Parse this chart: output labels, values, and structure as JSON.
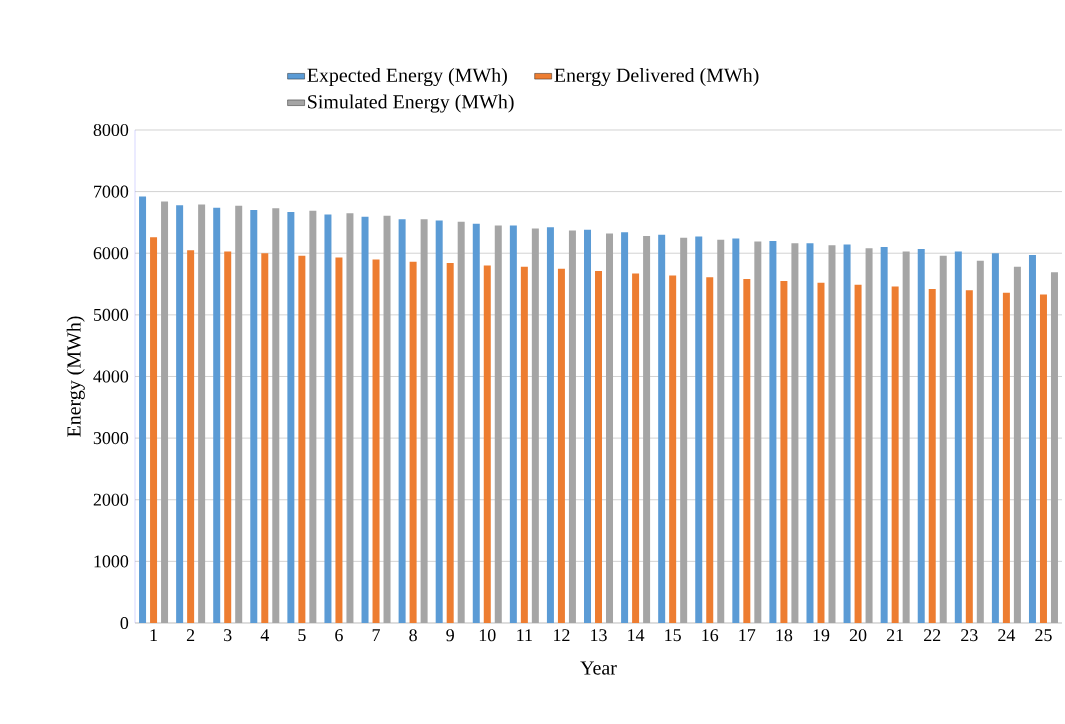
{
  "chart_data": {
    "type": "bar",
    "xlabel": "Year",
    "ylabel": "Energy (MWh)",
    "categories": [
      "1",
      "2",
      "3",
      "4",
      "5",
      "6",
      "7",
      "8",
      "9",
      "10",
      "11",
      "12",
      "13",
      "14",
      "15",
      "16",
      "17",
      "18",
      "19",
      "20",
      "21",
      "22",
      "23",
      "24",
      "25"
    ],
    "series": [
      {
        "name": "Expected Energy (MWh)",
        "color": "#5b9bd5",
        "values": [
          6920,
          6780,
          6740,
          6700,
          6670,
          6630,
          6590,
          6550,
          6530,
          6480,
          6450,
          6420,
          6380,
          6340,
          6300,
          6270,
          6240,
          6200,
          6160,
          6140,
          6100,
          6070,
          6030,
          6000,
          5970
        ]
      },
      {
        "name": "Energy Delivered (MWh)",
        "color": "#ed7d31",
        "values": [
          6260,
          6050,
          6030,
          6000,
          5960,
          5930,
          5900,
          5860,
          5840,
          5800,
          5780,
          5750,
          5710,
          5670,
          5640,
          5610,
          5580,
          5550,
          5520,
          5490,
          5460,
          5420,
          5400,
          5360,
          5330
        ]
      },
      {
        "name": "Simulated Energy  (MWh)",
        "color": "#a5a5a5",
        "values": [
          6840,
          6790,
          6770,
          6730,
          6690,
          6650,
          6610,
          6550,
          6510,
          6450,
          6400,
          6370,
          6320,
          6280,
          6250,
          6220,
          6190,
          6160,
          6130,
          6080,
          6030,
          5960,
          5880,
          5780,
          5690
        ]
      }
    ],
    "ylim": [
      0,
      8000
    ],
    "yticks": [
      0,
      1000,
      2000,
      3000,
      4000,
      5000,
      6000,
      7000,
      8000
    ],
    "grid": "y",
    "legend": "top"
  }
}
